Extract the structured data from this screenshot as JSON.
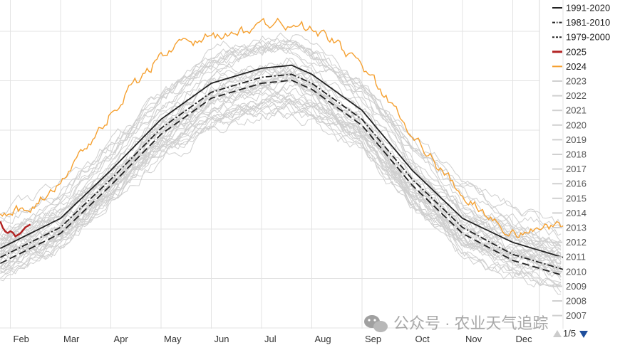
{
  "chart_data": {
    "type": "line",
    "title": "",
    "xlabel": "",
    "ylabel": "",
    "x_tick_labels": [
      "Feb",
      "Mar",
      "Apr",
      "May",
      "Jun",
      "Jul",
      "Aug",
      "Sep",
      "Oct",
      "Nov",
      "Dec"
    ],
    "x_unit": "month of year (1 = Jan 1, 13 = Dec 31)",
    "x_range": [
      1.8,
      13.0
    ],
    "y_range": [
      0,
      100
    ],
    "grid": true,
    "legend_placement": "right",
    "legend_page": "1/5",
    "series": [
      {
        "name": "1991-2020",
        "style": "solid",
        "color": "#222222",
        "x": [
          1.8,
          3,
          4,
          5,
          6,
          7,
          7.6,
          8,
          9,
          10,
          11,
          12,
          13
        ],
        "y": [
          22,
          32,
          48,
          65,
          77,
          82,
          83,
          80,
          68,
          48,
          32,
          24,
          19
        ]
      },
      {
        "name": "1981-2010",
        "style": "dash-dot",
        "color": "#222222",
        "x": [
          1.8,
          3,
          4,
          5,
          6,
          7,
          7.6,
          8,
          9,
          10,
          11,
          12,
          13
        ],
        "y": [
          19,
          29,
          45,
          62,
          74,
          79,
          80,
          77,
          65,
          45,
          29,
          20,
          15
        ]
      },
      {
        "name": "1979-2000",
        "style": "dashed",
        "color": "#222222",
        "x": [
          1.8,
          3,
          4,
          5,
          6,
          7,
          7.6,
          8,
          9,
          10,
          11,
          12,
          13
        ],
        "y": [
          17,
          27,
          43,
          60,
          72,
          77,
          78,
          75,
          63,
          43,
          27,
          18,
          13
        ]
      },
      {
        "name": "2025",
        "style": "solid",
        "color": "#b22222",
        "x": [
          1.8,
          1.87,
          1.94,
          2.02,
          2.1,
          2.2,
          2.3,
          2.4
        ],
        "y": [
          31,
          28,
          27,
          28,
          26,
          27,
          29,
          30
        ]
      },
      {
        "name": "2024",
        "style": "solid",
        "color": "#f5a030",
        "x": [
          1.8,
          2,
          2.5,
          3,
          3.5,
          4,
          4.5,
          5,
          5.5,
          6,
          6.5,
          7,
          7.3,
          7.6,
          8,
          8.5,
          9,
          9.5,
          10,
          10.5,
          11,
          11.5,
          12,
          12.2,
          12.5,
          13
        ],
        "y": [
          35,
          34,
          37,
          45,
          55,
          67,
          77,
          86,
          90,
          93,
          93,
          97,
          98,
          96,
          95,
          90,
          82,
          72,
          61,
          49,
          40,
          32,
          27,
          26,
          28,
          29
        ]
      }
    ],
    "legend_entries": [
      {
        "label": "1991-2020",
        "style": "solid",
        "color": "#222222"
      },
      {
        "label": "1981-2010",
        "style": "dash-dot",
        "color": "#222222"
      },
      {
        "label": "1979-2000",
        "style": "dashed",
        "color": "#222222"
      },
      {
        "label": "2025",
        "style": "solid",
        "color": "#b22222"
      },
      {
        "label": "2024",
        "style": "solid",
        "color": "#f5a030"
      },
      {
        "label": "2023",
        "style": "solid",
        "color": "#d0d0d0"
      },
      {
        "label": "2022",
        "style": "solid",
        "color": "#d0d0d0"
      },
      {
        "label": "2021",
        "style": "solid",
        "color": "#d0d0d0"
      },
      {
        "label": "2020",
        "style": "solid",
        "color": "#d0d0d0"
      },
      {
        "label": "2019",
        "style": "solid",
        "color": "#d0d0d0"
      },
      {
        "label": "2018",
        "style": "solid",
        "color": "#d0d0d0"
      },
      {
        "label": "2017",
        "style": "solid",
        "color": "#d0d0d0"
      },
      {
        "label": "2016",
        "style": "solid",
        "color": "#d0d0d0"
      },
      {
        "label": "2015",
        "style": "solid",
        "color": "#d0d0d0"
      },
      {
        "label": "2014",
        "style": "solid",
        "color": "#d0d0d0"
      },
      {
        "label": "2013",
        "style": "solid",
        "color": "#d0d0d0"
      },
      {
        "label": "2012",
        "style": "solid",
        "color": "#d0d0d0"
      },
      {
        "label": "2011",
        "style": "solid",
        "color": "#d0d0d0"
      },
      {
        "label": "2010",
        "style": "solid",
        "color": "#d0d0d0"
      },
      {
        "label": "2009",
        "style": "solid",
        "color": "#d0d0d0"
      },
      {
        "label": "2008",
        "style": "solid",
        "color": "#d0d0d0"
      },
      {
        "label": "2007",
        "style": "solid",
        "color": "#d0d0d0"
      }
    ],
    "historical_years_color": "#cfcfcf"
  },
  "watermark": "公众号 · 农业天气追踪",
  "watermark_icon": "wechat-icon",
  "pager": {
    "up_icon": "triangle-up-icon",
    "down_icon": "triangle-down-icon",
    "up_color": "#cccccc",
    "down_color": "#1f4e9c"
  }
}
